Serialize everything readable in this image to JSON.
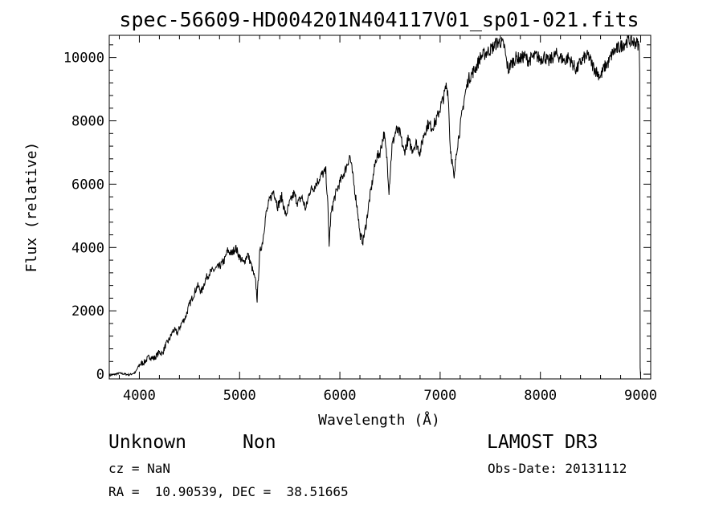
{
  "chart_data": {
    "type": "line",
    "title": "spec-56609-HD004201N404117V01_sp01-021.fits",
    "xlabel": "Wavelength (Å)",
    "ylabel": "Flux (relative)",
    "xlim": [
      3700,
      9100
    ],
    "ylim": [
      -150,
      10700
    ],
    "xticks": [
      4000,
      5000,
      6000,
      7000,
      8000,
      9000
    ],
    "yticks": [
      0,
      2000,
      4000,
      6000,
      8000,
      10000
    ],
    "grid": false,
    "legend": "none",
    "series": [
      {
        "x": [
          3700,
          3800,
          3900,
          3960,
          4000,
          4050,
          4100,
          4150,
          4200,
          4230,
          4260,
          4300,
          4340,
          4380,
          4420,
          4460,
          4500,
          4540,
          4580,
          4620,
          4660,
          4700,
          4750,
          4800,
          4850,
          4880,
          4920,
          4960,
          5000,
          5040,
          5080,
          5120,
          5160,
          5175,
          5200,
          5230,
          5260,
          5300,
          5340,
          5380,
          5420,
          5460,
          5500,
          5540,
          5580,
          5620,
          5660,
          5700,
          5740,
          5780,
          5820,
          5860,
          5880,
          5893,
          5910,
          5940,
          5980,
          6020,
          6060,
          6080,
          6100,
          6140,
          6180,
          6200,
          6230,
          6260,
          6290,
          6320,
          6360,
          6400,
          6440,
          6470,
          6490,
          6520,
          6560,
          6600,
          6640,
          6680,
          6720,
          6760,
          6800,
          6840,
          6880,
          6920,
          6960,
          7000,
          7040,
          7060,
          7080,
          7100,
          7120,
          7140,
          7160,
          7200,
          7240,
          7280,
          7320,
          7360,
          7400,
          7440,
          7480,
          7520,
          7560,
          7600,
          7640,
          7660,
          7680,
          7700,
          7720,
          7760,
          7800,
          7840,
          7880,
          7920,
          7960,
          8000,
          8040,
          8080,
          8120,
          8160,
          8200,
          8240,
          8280,
          8320,
          8360,
          8400,
          8440,
          8480,
          8520,
          8560,
          8600,
          8640,
          8680,
          8720,
          8760,
          8800,
          8840,
          8880,
          8920,
          8960,
          8985,
          8990,
          8995,
          9000
        ],
        "y": [
          -50,
          30,
          -20,
          50,
          300,
          380,
          550,
          500,
          700,
          650,
          900,
          1100,
          1400,
          1300,
          1600,
          1800,
          2200,
          2500,
          2800,
          2600,
          3000,
          3200,
          3300,
          3400,
          3600,
          3900,
          3800,
          4000,
          3700,
          3500,
          3800,
          3400,
          2900,
          2350,
          3800,
          4200,
          5000,
          5500,
          5800,
          5300,
          5600,
          5000,
          5400,
          5700,
          5400,
          5600,
          5200,
          5800,
          5900,
          6100,
          6300,
          6400,
          5300,
          4100,
          5000,
          5500,
          5900,
          6200,
          6500,
          6700,
          6900,
          6000,
          5100,
          4400,
          4200,
          4700,
          5400,
          6000,
          6800,
          7000,
          7600,
          6800,
          5800,
          7200,
          7700,
          7600,
          7000,
          7400,
          7100,
          7300,
          7000,
          7600,
          7900,
          7800,
          8000,
          8400,
          8800,
          9100,
          8900,
          7200,
          6700,
          6100,
          7000,
          7800,
          8700,
          9300,
          9500,
          9700,
          10000,
          10100,
          10200,
          10300,
          10450,
          10500,
          10350,
          9900,
          9600,
          9750,
          9850,
          10000,
          9950,
          10050,
          9900,
          10000,
          10050,
          9950,
          10050,
          9850,
          10000,
          10100,
          10000,
          9900,
          10000,
          9800,
          9600,
          9850,
          10000,
          10050,
          9750,
          9550,
          9400,
          9700,
          9850,
          10150,
          10250,
          10350,
          10450,
          10550,
          10500,
          10450,
          10400,
          9500,
          200,
          -100
        ]
      }
    ]
  },
  "meta": {
    "class_text": "Unknown",
    "subclass_text": "Non",
    "cz_text": "cz = NaN",
    "radec_text": "RA =  10.90539, DEC =  38.51665",
    "survey_text": "LAMOST DR3",
    "obsdate_text": "Obs-Date: 20131112"
  }
}
